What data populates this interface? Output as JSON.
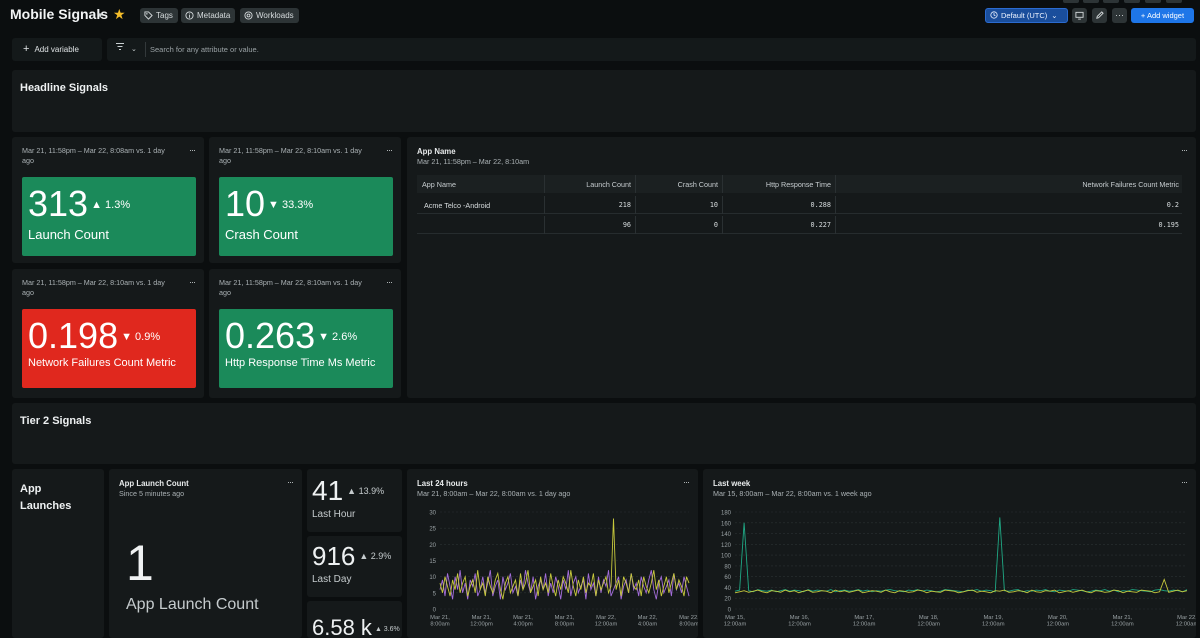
{
  "header": {
    "title": "Mobile Signals",
    "chips": [
      "Tags",
      "Metadata",
      "Workloads"
    ],
    "timezone": "Default (UTC)",
    "add_widget": "+ Add widget"
  },
  "filterbar": {
    "add_variable": "Add variable",
    "search_placeholder": "Search for any attribute or value."
  },
  "sections": {
    "headline": "Headline Signals",
    "tier2": "Tier 2 Signals"
  },
  "billboards": [
    {
      "meta": "Mar 21, 11:58pm – Mar 22, 8:08am vs. 1 day ago",
      "value": "313",
      "change": "▲ 1.3%",
      "label": "Launch Count",
      "color": "#1b8a5a"
    },
    {
      "meta": "Mar 21, 11:58pm – Mar 22, 8:10am vs. 1 day ago",
      "value": "10",
      "change": "▼ 33.3%",
      "label": "Crash Count",
      "color": "#1b8a5a"
    },
    {
      "meta": "Mar 21, 11:58pm – Mar 22, 8:10am vs. 1 day ago",
      "value": "0.198",
      "change": "▼ 0.9%",
      "label": "Network Failures Count Metric",
      "color": "#e0281e"
    },
    {
      "meta": "Mar 21, 11:58pm – Mar 22, 8:10am vs. 1 day ago",
      "value": "0.263",
      "change": "▼ 2.6%",
      "label": "Http Response Time Ms Metric",
      "color": "#1b8a5a"
    }
  ],
  "table": {
    "title": "App Name",
    "subtitle": "Mar 21, 11:58pm – Mar 22, 8:10am",
    "columns": [
      "App Name",
      "Launch Count",
      "Crash Count",
      "Http Response Time",
      "Network Failures Count Metric"
    ],
    "rows": [
      [
        "Acme Telco -Android",
        "218",
        "10",
        "0.288",
        "0.2"
      ],
      [
        "",
        "96",
        "0",
        "0.227",
        "0.195"
      ]
    ]
  },
  "app_launches": {
    "heading": "App Launches",
    "widget_title": "App Launch Count",
    "widget_sub": "Since 5 minutes ago",
    "value": "1",
    "value_label": "App Launch Count",
    "small": [
      {
        "value": "41",
        "change": "▲ 13.9%",
        "label": "Last Hour"
      },
      {
        "value": "916",
        "change": "▲ 2.9%",
        "label": "Last Day"
      },
      {
        "value": "6.58 k",
        "change": "▲ 3.6%",
        "label": ""
      }
    ]
  },
  "chart_data": [
    {
      "type": "line",
      "title": "Last 24 hours",
      "subtitle": "Mar 21, 8:00am – Mar 22, 8:00am vs. 1 day ago",
      "ylim": [
        0,
        30
      ],
      "yticks": [
        0,
        5,
        10,
        15,
        20,
        25,
        30
      ],
      "xticks": [
        "Mar 21, 8:00am",
        "Mar 21, 12:00pm",
        "Mar 21, 4:00pm",
        "Mar 21, 8:00pm",
        "Mar 22, 12:00am",
        "Mar 22, 4:00am",
        "Mar 22, 8:00am"
      ],
      "grid": true,
      "series": [
        {
          "color": "#a36ddb",
          "values": [
            6,
            9,
            4,
            11,
            7,
            3,
            10,
            6,
            12,
            5,
            8,
            3,
            9,
            7,
            11,
            4,
            6,
            10,
            5,
            8,
            12,
            4,
            7,
            9,
            3,
            10,
            6,
            8,
            11,
            5,
            7,
            4,
            9,
            6,
            12,
            8,
            5,
            10,
            3,
            7,
            9,
            6,
            11,
            4,
            8,
            5,
            10,
            7,
            3,
            9,
            6,
            12,
            4,
            8,
            10,
            5,
            7,
            9,
            3,
            11,
            6,
            8,
            4,
            10,
            5,
            9,
            7,
            12,
            4,
            6,
            8,
            10,
            3,
            7,
            9,
            5,
            11,
            6,
            8,
            4,
            10,
            7,
            5,
            9,
            12,
            6,
            3,
            8,
            10,
            5,
            7,
            9,
            4,
            11,
            6,
            8,
            5,
            10,
            7,
            4
          ]
        },
        {
          "color": "#c7c93c",
          "values": [
            8,
            5,
            10,
            7,
            4,
            9,
            6,
            11,
            5,
            8,
            10,
            4,
            7,
            9,
            5,
            12,
            6,
            8,
            4,
            10,
            7,
            5,
            9,
            11,
            6,
            3,
            8,
            10,
            5,
            7,
            9,
            4,
            11,
            6,
            8,
            12,
            5,
            7,
            9,
            4,
            10,
            6,
            8,
            5,
            11,
            7,
            4,
            9,
            6,
            10,
            8,
            5,
            12,
            7,
            4,
            9,
            6,
            10,
            5,
            8,
            7,
            11,
            4,
            9,
            6,
            8,
            10,
            5,
            7,
            28,
            6,
            9,
            4,
            10,
            8,
            5,
            11,
            7,
            6,
            9,
            4,
            10,
            7,
            5,
            8,
            12,
            6,
            9,
            4,
            7,
            10,
            5,
            8,
            11,
            6,
            9,
            7,
            4,
            10,
            8
          ]
        }
      ]
    },
    {
      "type": "line",
      "title": "Last week",
      "subtitle": "Mar 15, 8:00am – Mar 22, 8:00am vs. 1 week ago",
      "ylim": [
        0,
        180
      ],
      "yticks": [
        0,
        20,
        40,
        60,
        80,
        100,
        120,
        140,
        160,
        180
      ],
      "xticks": [
        "Mar 15, 12:00am",
        "Mar 16, 12:00am",
        "Mar 17, 12:00am",
        "Mar 18, 12:00am",
        "Mar 19, 12:00am",
        "Mar 20, 12:00am",
        "Mar 21, 12:00am",
        "Mar 22, 12:00am"
      ],
      "grid": true,
      "series": [
        {
          "color": "#1fa884",
          "values": [
            33,
            35,
            160,
            34,
            32,
            36,
            34,
            33,
            35,
            32,
            34,
            36,
            33,
            35,
            34,
            32,
            36,
            33,
            35,
            34,
            33,
            36,
            32,
            34,
            35,
            33,
            34,
            36,
            33,
            35,
            32,
            34,
            33,
            35,
            36,
            34,
            33,
            32,
            35,
            34,
            36,
            33,
            35,
            34,
            32,
            33,
            36,
            35,
            34,
            33,
            32,
            35,
            34,
            36,
            33,
            35,
            34,
            32,
            170,
            34,
            33,
            35,
            36,
            32,
            34,
            33,
            35,
            34,
            36,
            33,
            32,
            35,
            34,
            33,
            36,
            35,
            34,
            32,
            33,
            35,
            34,
            36,
            33,
            35,
            32,
            34,
            33,
            36,
            35,
            34,
            33,
            32,
            35,
            36,
            34,
            33,
            35,
            34,
            32,
            36
          ]
        },
        {
          "color": "#c7c93c",
          "values": [
            30,
            32,
            34,
            31,
            33,
            35,
            32,
            30,
            34,
            33,
            31,
            35,
            32,
            34,
            30,
            33,
            35,
            31,
            32,
            34,
            33,
            30,
            35,
            32,
            34,
            31,
            33,
            35,
            30,
            32,
            34,
            33,
            31,
            35,
            32,
            30,
            34,
            33,
            31,
            32,
            35,
            34,
            30,
            33,
            32,
            31,
            35,
            34,
            33,
            30,
            32,
            34,
            35,
            31,
            33,
            32,
            30,
            34,
            33,
            35,
            31,
            32,
            34,
            33,
            30,
            35,
            32,
            31,
            34,
            33,
            35,
            30,
            32,
            34,
            31,
            33,
            35,
            32,
            30,
            34,
            33,
            31,
            32,
            35,
            34,
            30,
            33,
            32,
            31,
            35,
            34,
            33,
            30,
            32,
            55,
            31,
            33,
            35,
            32,
            34
          ]
        }
      ]
    }
  ]
}
